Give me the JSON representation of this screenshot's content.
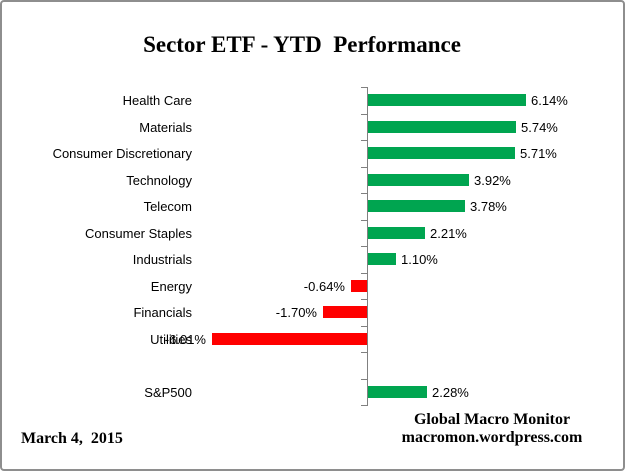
{
  "chart_data": {
    "type": "bar",
    "orientation": "horizontal",
    "title": "Sector ETF - YTD  Performance",
    "categories": [
      "Health Care",
      "Materials",
      "Consumer Discretionary",
      "Technology",
      "Telecom",
      "Consumer Staples",
      "Industrials",
      "Energy",
      "Financials",
      "Utilities",
      "",
      "S&P500"
    ],
    "values": [
      6.14,
      5.74,
      5.71,
      3.92,
      3.78,
      2.21,
      1.1,
      -0.64,
      -1.7,
      -6.01,
      null,
      2.28
    ],
    "value_labels": [
      "6.14%",
      "5.74%",
      "5.71%",
      "3.92%",
      "3.78%",
      "2.21%",
      "1.10%",
      "-0.64%",
      "-1.70%",
      "-6.01%",
      "",
      "2.28%"
    ],
    "xlim": [
      -7,
      9.5
    ],
    "grid": false,
    "legend": false,
    "positive_color": "#00A550",
    "negative_color": "#FF0000",
    "axis_color": "#808080",
    "xlabel": "",
    "ylabel": ""
  },
  "footer": {
    "date": "March 4,  2015",
    "credit_line1": "Global Macro Monitor",
    "credit_line2": "macromon.wordpress.com"
  }
}
